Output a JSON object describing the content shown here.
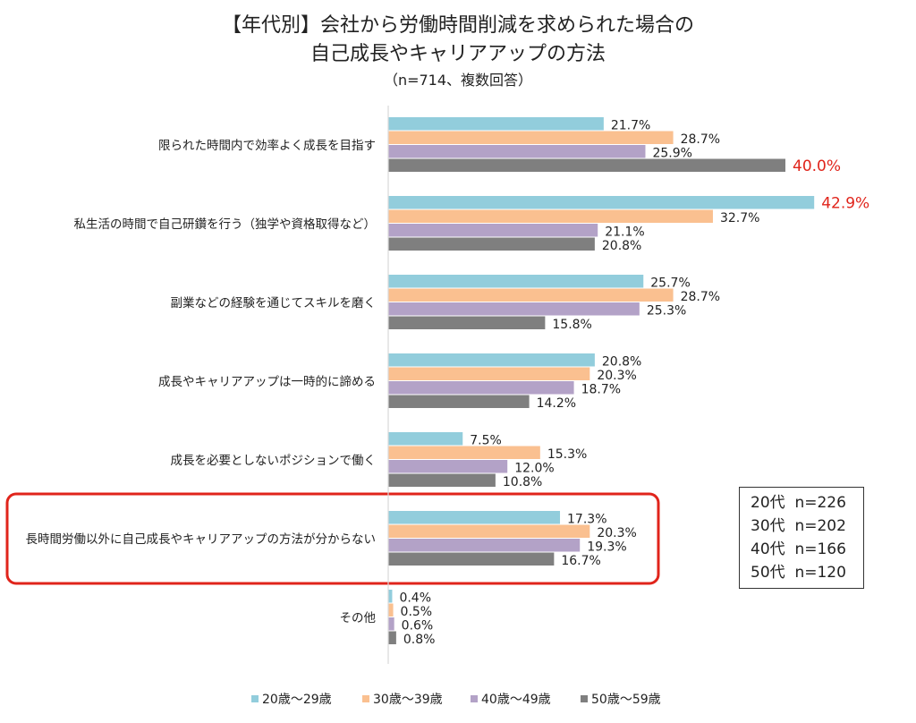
{
  "title": {
    "line1": "【年代別】会社から労働時間削減を求められた場合の",
    "line2": "自己成長やキャリアアップの方法",
    "line3": "（n=714、複数回答）"
  },
  "sample_box": [
    {
      "label": "20代",
      "n": "n=226"
    },
    {
      "label": "30代",
      "n": "n=202"
    },
    {
      "label": "40代",
      "n": "n=166"
    },
    {
      "label": "50代",
      "n": "n=120"
    }
  ],
  "colors": {
    "20s": "#92cddc",
    "30s": "#fac090",
    "40s": "#b3a2c7",
    "50s": "#7f7f7f",
    "highlight_text": "#e0241b",
    "highlight_box": "#e0241b"
  },
  "chart_data": {
    "type": "bar",
    "orientation": "horizontal",
    "categories": [
      "限られた時間内で効率よく成長を目指す",
      "私生活の時間で自己研鑽を行う（独学や資格取得など）",
      "副業などの経験を通じてスキルを磨く",
      "成長やキャリアアップは一時的に諦める",
      "成長を必要としないポジションで働く",
      "長時間労働以外に自己成長やキャリアアップの方法が分からない",
      "その他"
    ],
    "series": [
      {
        "name": "20歳～29歳",
        "values": [
          21.7,
          42.9,
          25.7,
          20.8,
          7.5,
          17.3,
          0.4
        ]
      },
      {
        "name": "30歳～39歳",
        "values": [
          28.7,
          32.7,
          28.7,
          20.3,
          15.3,
          20.3,
          0.5
        ]
      },
      {
        "name": "40歳～49歳",
        "values": [
          25.9,
          21.1,
          25.3,
          18.7,
          12.0,
          19.3,
          0.6
        ]
      },
      {
        "name": "50歳～59歳",
        "values": [
          40.0,
          20.8,
          15.8,
          14.2,
          10.8,
          16.7,
          0.8
        ]
      }
    ],
    "value_suffix": "%",
    "highlighted_values": [
      {
        "category": "限られた時間内で効率よく成長を目指す",
        "series": "50歳～59歳"
      },
      {
        "category": "私生活の時間で自己研鑽を行う（独学や資格取得など）",
        "series": "20歳～29歳"
      }
    ],
    "highlighted_category": "長時間労働以外に自己成長やキャリアアップの方法が分からない",
    "xlim": [
      0,
      50
    ],
    "grid": false,
    "legend_position": "bottom"
  }
}
